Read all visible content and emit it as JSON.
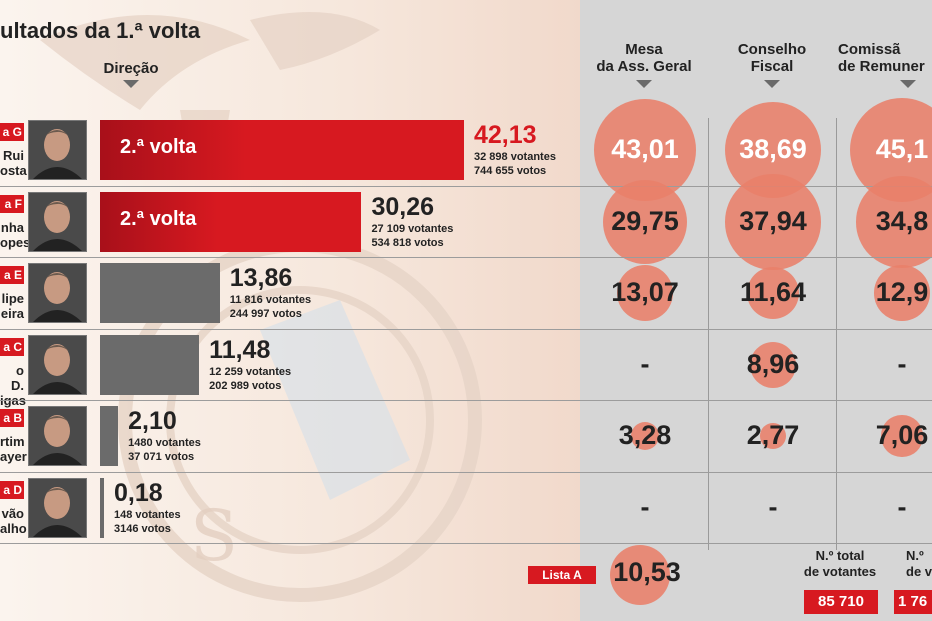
{
  "title": "ultados da 1.ª volta",
  "header": {
    "direcao": "Direção",
    "mesa_line1": "Mesa",
    "mesa_line2": "da Ass. Geral",
    "conselho_line1": "Conselho",
    "conselho_line2": "Fiscal",
    "comissao_line1": "Comissã",
    "comissao_line2": "de Remuner"
  },
  "colors": {
    "red": "#d71920",
    "dark_red": "#a8101a",
    "gray_bar": "#6b6b6b",
    "bubble": "#e9806a",
    "panel": "#d6d6d6"
  },
  "chart_data": {
    "type": "bar",
    "title": "ultados da 1.ª volta",
    "categories": [
      "Lista G",
      "Lista F",
      "Lista E",
      "Lista C",
      "Lista B",
      "Lista D"
    ],
    "series": [
      {
        "name": "Direção",
        "values": [
          42.13,
          30.26,
          13.86,
          11.48,
          2.1,
          0.18
        ]
      },
      {
        "name": "Mesa da Ass. Geral",
        "values": [
          43.01,
          29.75,
          13.07,
          null,
          3.28,
          null
        ]
      },
      {
        "name": "Conselho Fiscal",
        "values": [
          38.69,
          37.94,
          11.64,
          8.96,
          2.77,
          null
        ]
      },
      {
        "name": "Comissã de Remuner",
        "values": [
          45.1,
          34.8,
          12.9,
          null,
          7.06,
          null
        ]
      }
    ],
    "xlim": [
      0,
      44
    ]
  },
  "rows": [
    {
      "tag": "a G",
      "name1": "Rui",
      "name2": "osta",
      "bar_label": "2.ª volta",
      "pct": "42,13",
      "votantes": "32 898 votantes",
      "votos": "744 655 votos",
      "mesa": "43,01",
      "conselho": "38,69",
      "comissao": "45,1"
    },
    {
      "tag": "a F",
      "name1": "nha",
      "name2": "opes",
      "bar_label": "2.ª volta",
      "pct": "30,26",
      "votantes": "27 109 votantes",
      "votos": "534 818 votos",
      "mesa": "29,75",
      "conselho": "37,94",
      "comissao": "34,8"
    },
    {
      "tag": "a E",
      "name1": "lipe",
      "name2": "eira",
      "bar_label": "",
      "pct": "13,86",
      "votantes": "11 816 votantes",
      "votos": "244 997 votos",
      "mesa": "13,07",
      "conselho": "11,64",
      "comissao": "12,9"
    },
    {
      "tag": "a C",
      "name1": "o D.",
      "name2": "igas",
      "bar_label": "",
      "pct": "11,48",
      "votantes": "12 259 votantes",
      "votos": "202 989 votos",
      "mesa": "-",
      "conselho": "8,96",
      "comissao": "-"
    },
    {
      "tag": "a B",
      "name1": "rtim",
      "name2": "ayer",
      "bar_label": "",
      "pct": "2,10",
      "votantes": "1480 votantes",
      "votos": "37 071 votos",
      "mesa": "3,28",
      "conselho": "2,77",
      "comissao": "7,06"
    },
    {
      "tag": "a D",
      "name1": "vão",
      "name2": "alho",
      "bar_label": "",
      "pct": "0,18",
      "votantes": "148 votantes",
      "votos": "3146 votos",
      "mesa": "-",
      "conselho": "-",
      "comissao": "-"
    }
  ],
  "lista_a": {
    "tag": "Lista A",
    "value": "10,53"
  },
  "totals": {
    "label1_line1": "N.º total",
    "label1_line2": "de votantes",
    "value1": "85 710",
    "label2_line1": "N.º",
    "label2_line2": "de v",
    "value2": "1 76"
  }
}
